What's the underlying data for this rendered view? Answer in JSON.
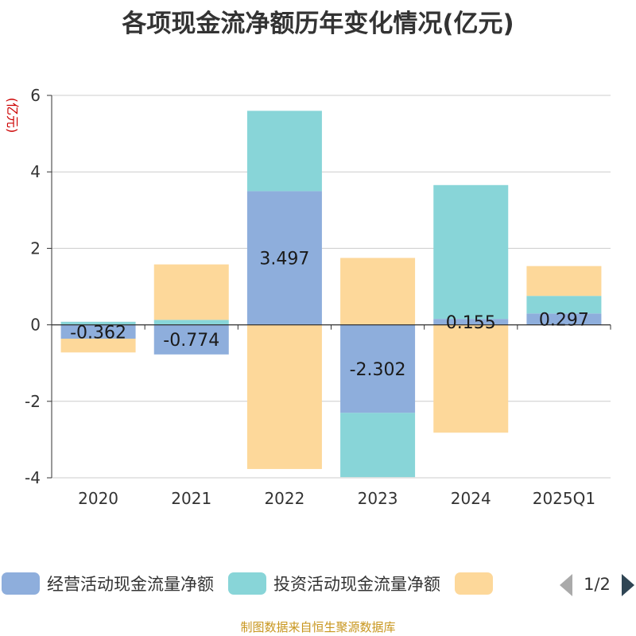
{
  "chart_data": {
    "type": "bar",
    "stacked": true,
    "title": "各项现金流净额历年变化情况(亿元)",
    "ylabel": "(亿元)",
    "categories": [
      "2020",
      "2021",
      "2022",
      "2023",
      "2024",
      "2025Q1"
    ],
    "ylim": [
      -4,
      6
    ],
    "yticks": [
      -4,
      -2,
      0,
      2,
      4,
      6
    ],
    "grid": true,
    "series": [
      {
        "name": "经营活动现金流量净额",
        "color": "#8eaedc",
        "values": [
          -0.362,
          -0.774,
          3.497,
          -2.302,
          0.155,
          0.297
        ],
        "labels": [
          "-0.362",
          "-0.774",
          "3.497",
          "-2.302",
          "0.155",
          "0.297"
        ]
      },
      {
        "name": "投资活动现金流量净额",
        "color": "#88d5d8",
        "values": [
          0.08,
          0.13,
          2.1,
          -1.68,
          3.5,
          0.46
        ]
      },
      {
        "name": "",
        "color": "#fdd89a",
        "values": [
          -0.36,
          1.45,
          -3.77,
          1.75,
          -2.82,
          0.78
        ]
      }
    ],
    "legend": {
      "position": "bottom",
      "page": "1/2"
    }
  },
  "source_note": "制图数据来自恒生聚源数据库"
}
